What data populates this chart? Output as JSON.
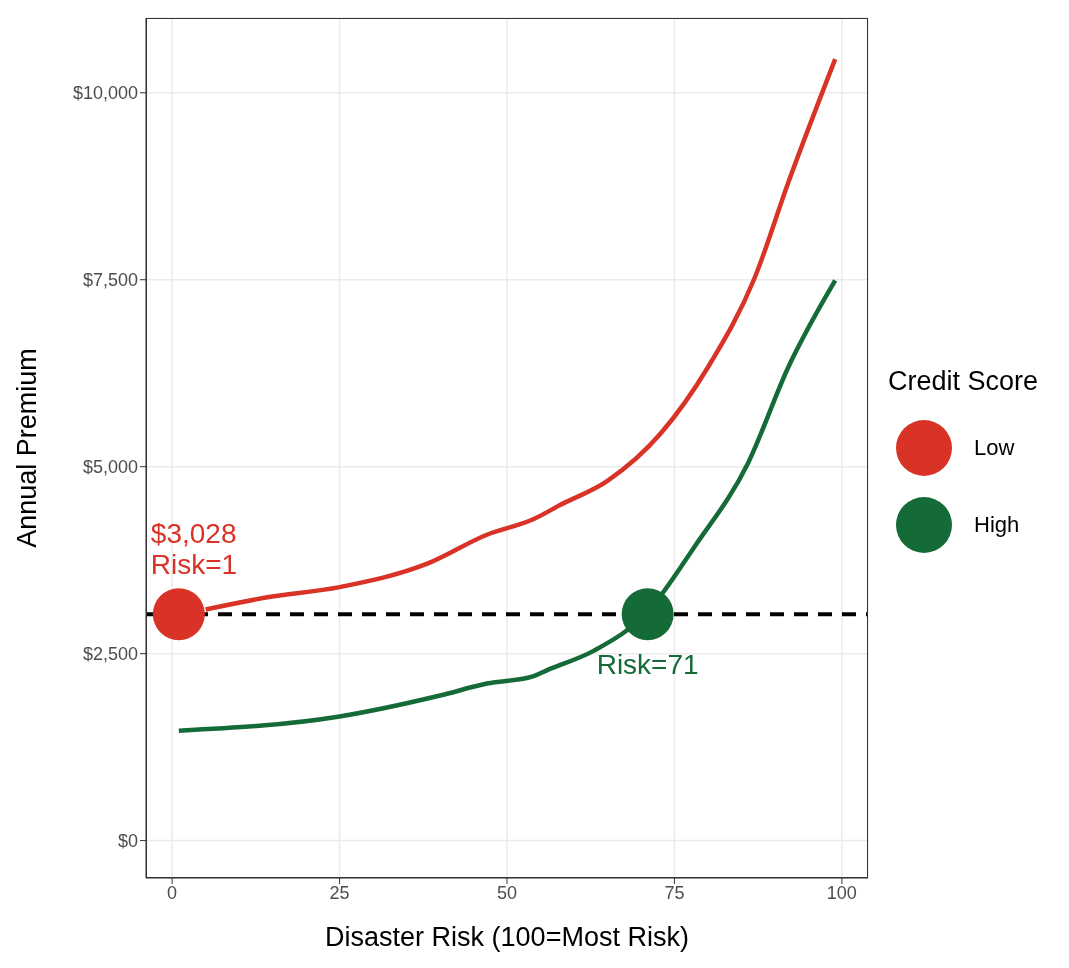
{
  "chart_data": {
    "type": "line",
    "xlabel": "Disaster Risk (100=Most Risk)",
    "ylabel": "Annual Premium",
    "legend_title": "Credit Score",
    "legend": "right",
    "grid": true,
    "line_style": "solid",
    "marker": "none",
    "xlim": [
      -3.9,
      103.9
    ],
    "xticks": [
      0,
      25,
      50,
      75,
      100
    ],
    "ylim": [
      -500,
      11000
    ],
    "yticks": [
      {
        "value": 0,
        "label": "$0"
      },
      {
        "value": 2500,
        "label": "$2,500"
      },
      {
        "value": 5000,
        "label": "$5,000"
      },
      {
        "value": 7500,
        "label": "$7,500"
      },
      {
        "value": 10000,
        "label": "$10,000"
      }
    ],
    "series": [
      {
        "name": "Low",
        "color": "#d93327",
        "x": [
          5,
          14,
          25,
          38,
          47,
          54,
          58,
          65,
          73,
          80,
          87,
          92,
          99
        ],
        "values": [
          3090,
          3250,
          3390,
          3700,
          4090,
          4300,
          4490,
          4810,
          5450,
          6330,
          7530,
          8800,
          10450
        ]
      },
      {
        "name": "High",
        "color": "#146b37",
        "x": [
          1,
          25,
          40,
          47,
          54,
          56,
          63,
          71,
          78,
          86,
          92,
          99
        ],
        "values": [
          1470,
          1660,
          1940,
          2100,
          2200,
          2280,
          2540,
          3060,
          3930,
          5050,
          6330,
          7490
        ]
      },
      {
        "type": "scatter",
        "color": "#d93327",
        "marker": "circle",
        "x": [
          1
        ],
        "values": [
          3028
        ]
      },
      {
        "type": "scatter",
        "color": "#146b37",
        "marker": "circle",
        "x": [
          71
        ],
        "values": [
          3028
        ]
      }
    ],
    "ref_lines": [
      {
        "axis": "y",
        "value": 3028,
        "color": "#000000",
        "line_style": "dashed"
      }
    ],
    "annotations": [
      {
        "text": "$3,028\nRisk=1",
        "x": 1,
        "y": 3028
      },
      {
        "text": "Risk=71",
        "x": 71,
        "y": 3028
      }
    ]
  }
}
